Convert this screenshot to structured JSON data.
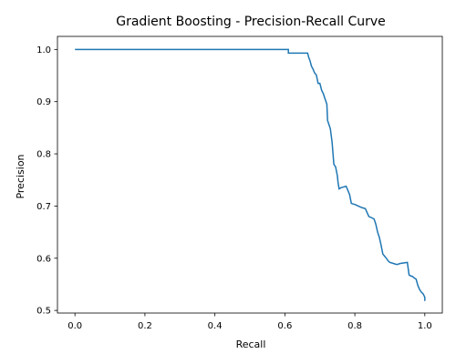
{
  "chart_data": {
    "type": "line",
    "title": "Gradient Boosting - Precision-Recall Curve",
    "xlabel": "Recall",
    "ylabel": "Precision",
    "xlim": [
      -0.05,
      1.05
    ],
    "ylim": [
      0.495,
      1.025
    ],
    "xticks": [
      0.0,
      0.2,
      0.4,
      0.6,
      0.8,
      1.0
    ],
    "xtick_labels": [
      "0.0",
      "0.2",
      "0.4",
      "0.6",
      "0.8",
      "1.0"
    ],
    "yticks": [
      0.5,
      0.6,
      0.7,
      0.8,
      0.9,
      1.0
    ],
    "ytick_labels": [
      "0.5",
      "0.6",
      "0.7",
      "0.8",
      "0.9",
      "1.0"
    ],
    "grid": false,
    "line_color": "#1f77b4",
    "series": [
      {
        "x": [
          0.0,
          0.61,
          0.61,
          0.665,
          0.668,
          0.672,
          0.676,
          0.68,
          0.685,
          0.69,
          0.695,
          0.7,
          0.705,
          0.71,
          0.715,
          0.72,
          0.722,
          0.725,
          0.73,
          0.735,
          0.74,
          0.742,
          0.745,
          0.75,
          0.752,
          0.755,
          0.76,
          0.775,
          0.78,
          0.785,
          0.79,
          0.8,
          0.81,
          0.82,
          0.83,
          0.84,
          0.85,
          0.855,
          0.86,
          0.865,
          0.87,
          0.875,
          0.88,
          0.885,
          0.89,
          0.895,
          0.9,
          0.91,
          0.92,
          0.93,
          0.95,
          0.955,
          0.96,
          0.965,
          0.97,
          0.975,
          0.98,
          0.985,
          0.99,
          0.995,
          0.998,
          1.0,
          1.0
        ],
        "y": [
          1.0,
          1.0,
          0.993,
          0.993,
          0.985,
          0.978,
          0.968,
          0.963,
          0.955,
          0.951,
          0.935,
          0.935,
          0.922,
          0.915,
          0.905,
          0.895,
          0.864,
          0.858,
          0.848,
          0.822,
          0.78,
          0.778,
          0.775,
          0.758,
          0.745,
          0.733,
          0.735,
          0.738,
          0.73,
          0.722,
          0.705,
          0.703,
          0.7,
          0.697,
          0.695,
          0.68,
          0.677,
          0.675,
          0.665,
          0.65,
          0.64,
          0.625,
          0.608,
          0.604,
          0.6,
          0.595,
          0.592,
          0.59,
          0.588,
          0.59,
          0.592,
          0.568,
          0.566,
          0.565,
          0.562,
          0.56,
          0.548,
          0.54,
          0.535,
          0.532,
          0.528,
          0.525,
          0.518
        ]
      }
    ]
  }
}
